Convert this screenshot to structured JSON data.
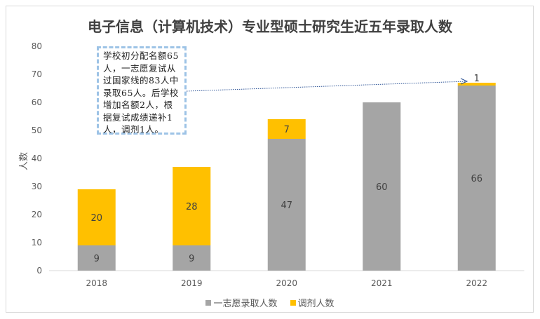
{
  "chart_data": {
    "type": "bar",
    "stacked": true,
    "title": "电子信息（计算机技术）专业型硕士研究生近五年录取人数",
    "ylabel": "人数",
    "xlabel": "",
    "ylim": [
      0,
      80
    ],
    "yticks": [
      0,
      10,
      20,
      30,
      40,
      50,
      60,
      70,
      80
    ],
    "categories": [
      "2018",
      "2019",
      "2020",
      "2021",
      "2022"
    ],
    "series": [
      {
        "name": "一志愿录取人数",
        "color": "#a5a5a5",
        "values": [
          9,
          9,
          47,
          60,
          66
        ]
      },
      {
        "name": "调剂人数",
        "color": "#ffc000",
        "values": [
          20,
          28,
          7,
          0,
          1
        ]
      }
    ],
    "legend_position": "bottom",
    "annotation": "学校初分配名额65人，一志愿复试从过国家线的83人中录取65人。后学校增加名额2人，根据复试成绩递补1人，调剂1人。"
  }
}
